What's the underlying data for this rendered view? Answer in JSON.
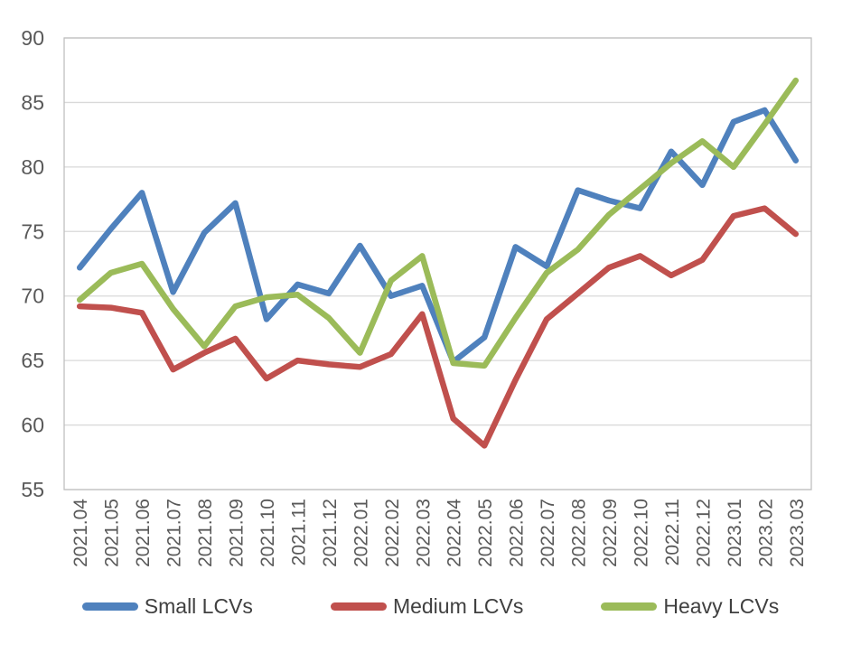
{
  "chart_data": {
    "type": "line",
    "title": "",
    "xlabel": "",
    "ylabel": "",
    "categories": [
      "2021.04",
      "2021.05",
      "2021.06",
      "2021.07",
      "2021.08",
      "2021.09",
      "2021.10",
      "2021.11",
      "2021.12",
      "2022.01",
      "2022.02",
      "2022.03",
      "2022.04",
      "2022.05",
      "2022.06",
      "2022.07",
      "2022.08",
      "2022.09",
      "2022.10",
      "2022.11",
      "2022.12",
      "2023.01",
      "2023.02",
      "2023.03"
    ],
    "series": [
      {
        "name": "Small LCVs",
        "color": "#4F81BD",
        "values": [
          72.2,
          75.2,
          78.0,
          70.3,
          74.9,
          77.2,
          68.2,
          70.9,
          70.2,
          73.9,
          70.0,
          70.8,
          64.9,
          66.8,
          73.8,
          72.3,
          78.2,
          77.4,
          76.8,
          81.2,
          78.6,
          83.5,
          84.4,
          80.5
        ]
      },
      {
        "name": "Medium LCVs",
        "color": "#C0504D",
        "values": [
          69.2,
          69.1,
          68.7,
          64.3,
          65.6,
          66.7,
          63.6,
          65.0,
          64.7,
          64.5,
          65.5,
          68.6,
          60.5,
          58.4,
          63.5,
          68.2,
          70.2,
          72.2,
          73.1,
          71.6,
          72.8,
          76.2,
          76.8,
          74.8
        ]
      },
      {
        "name": "Heavy LCVs",
        "color": "#9BBB59",
        "values": [
          69.7,
          71.8,
          72.5,
          69.0,
          66.1,
          69.2,
          69.9,
          70.1,
          68.3,
          65.6,
          71.2,
          73.1,
          64.8,
          64.6,
          68.3,
          71.8,
          73.6,
          76.3,
          78.3,
          80.3,
          82.0,
          80.0,
          83.3,
          86.7
        ]
      }
    ],
    "ylim": [
      55,
      90
    ],
    "yticks": [
      55,
      60,
      65,
      70,
      75,
      80,
      85,
      90
    ],
    "grid": "horizontal",
    "legend_position": "bottom",
    "line_width": 6.5,
    "axis_text_color": "#595959",
    "gridline_color": "#D9D9D9",
    "border_color": "#BFBFBF",
    "background": "#FFFFFF"
  }
}
